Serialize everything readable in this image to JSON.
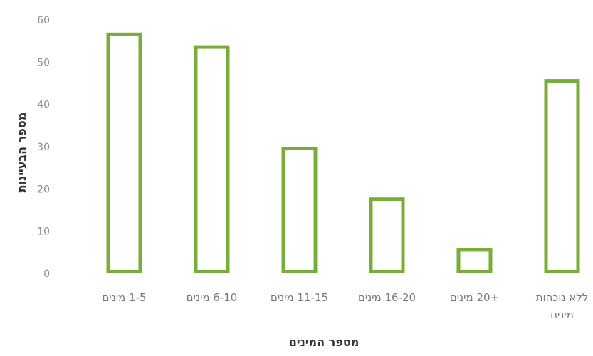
{
  "chart_data": {
    "type": "bar",
    "title": "",
    "xlabel": "מספר המינים",
    "ylabel": "מספר הבעיינות",
    "ylim": [
      0,
      60
    ],
    "yticks": [
      0,
      10,
      20,
      30,
      40,
      50,
      60
    ],
    "grid": false,
    "categories": [
      [
        "1-5 מינים"
      ],
      [
        "6-10 מינים"
      ],
      [
        "11-15 מינים"
      ],
      [
        "16-20 מינים"
      ],
      [
        "+20 מינים"
      ],
      [
        "ללא נוכחות",
        "מינים"
      ]
    ],
    "series": [
      {
        "values": [
          57,
          54,
          30,
          18,
          6,
          46
        ]
      }
    ],
    "colors": {
      "bar_stroke": "#79ad3a",
      "bar_fill": "#ffffff"
    }
  }
}
